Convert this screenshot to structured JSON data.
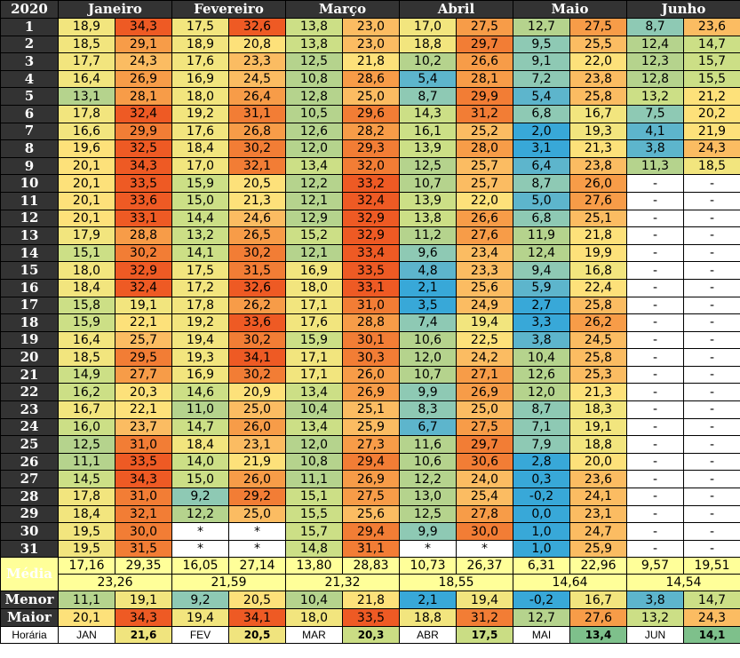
{
  "year": "2020",
  "months": [
    "Janeiro",
    "Fevereiro",
    "Março",
    "Abril",
    "Maio",
    "Junho"
  ],
  "days": [
    "1",
    "2",
    "3",
    "4",
    "5",
    "6",
    "7",
    "8",
    "9",
    "10",
    "11",
    "12",
    "13",
    "14",
    "15",
    "16",
    "17",
    "18",
    "19",
    "20",
    "21",
    "22",
    "23",
    "24",
    "25",
    "26",
    "27",
    "28",
    "29",
    "30",
    "31"
  ],
  "min_values": [
    [
      "18,9",
      "17,5",
      "13,8",
      "17,0",
      "12,7",
      "8,7"
    ],
    [
      "18,5",
      "18,9",
      "13,8",
      "18,8",
      "9,5",
      "12,4"
    ],
    [
      "17,7",
      "17,6",
      "12,5",
      "10,2",
      "9,1",
      "12,3"
    ],
    [
      "16,4",
      "16,9",
      "10,8",
      "5,4",
      "7,2",
      "12,8"
    ],
    [
      "13,1",
      "18,0",
      "12,8",
      "8,7",
      "5,4",
      "13,2"
    ],
    [
      "17,8",
      "19,2",
      "10,5",
      "14,3",
      "6,8",
      "7,5"
    ],
    [
      "16,6",
      "17,6",
      "12,6",
      "16,1",
      "2,0",
      "4,1"
    ],
    [
      "19,6",
      "18,4",
      "12,0",
      "13,9",
      "3,1",
      "3,8"
    ],
    [
      "20,1",
      "17,0",
      "13,4",
      "12,5",
      "6,4",
      "11,3"
    ],
    [
      "20,1",
      "15,9",
      "12,2",
      "10,7",
      "8,7",
      "-"
    ],
    [
      "20,1",
      "15,0",
      "12,1",
      "13,9",
      "5,0",
      "-"
    ],
    [
      "20,1",
      "14,4",
      "12,9",
      "13,8",
      "6,8",
      "-"
    ],
    [
      "17,9",
      "13,2",
      "15,2",
      "11,2",
      "11,9",
      "-"
    ],
    [
      "15,1",
      "14,1",
      "12,1",
      "9,6",
      "12,4",
      "-"
    ],
    [
      "18,0",
      "17,5",
      "16,9",
      "4,8",
      "9,4",
      "-"
    ],
    [
      "18,4",
      "17,2",
      "18,0",
      "2,1",
      "5,9",
      "-"
    ],
    [
      "15,8",
      "17,8",
      "17,1",
      "3,5",
      "2,7",
      "-"
    ],
    [
      "15,9",
      "19,2",
      "17,6",
      "7,4",
      "3,3",
      "-"
    ],
    [
      "16,4",
      "19,4",
      "15,9",
      "10,6",
      "3,8",
      "-"
    ],
    [
      "18,5",
      "19,3",
      "17,1",
      "12,0",
      "10,4",
      "-"
    ],
    [
      "14,9",
      "16,9",
      "17,1",
      "10,7",
      "12,6",
      "-"
    ],
    [
      "16,2",
      "14,6",
      "13,4",
      "9,9",
      "12,0",
      "-"
    ],
    [
      "16,7",
      "11,0",
      "10,4",
      "8,3",
      "8,7",
      "-"
    ],
    [
      "16,0",
      "14,7",
      "13,4",
      "6,7",
      "7,1",
      "-"
    ],
    [
      "12,5",
      "18,4",
      "12,0",
      "11,6",
      "7,9",
      "-"
    ],
    [
      "11,1",
      "14,0",
      "10,8",
      "10,6",
      "2,8",
      "-"
    ],
    [
      "14,5",
      "15,0",
      "11,1",
      "12,2",
      "0,3",
      "-"
    ],
    [
      "17,8",
      "9,2",
      "15,1",
      "13,0",
      "-0,2",
      "-"
    ],
    [
      "18,4",
      "12,2",
      "15,5",
      "12,5",
      "0,0",
      "-"
    ],
    [
      "19,5",
      "*",
      "15,7",
      "9,9",
      "1,0",
      "-"
    ],
    [
      "19,5",
      "*",
      "14,8",
      "*",
      "1,0",
      "-"
    ]
  ],
  "max_values": [
    [
      "34,3",
      "32,6",
      "23,0",
      "27,5",
      "27,5",
      "23,6"
    ],
    [
      "29,1",
      "20,8",
      "23,0",
      "29,7",
      "25,5",
      "14,7"
    ],
    [
      "24,3",
      "23,3",
      "21,8",
      "26,6",
      "22,0",
      "15,7"
    ],
    [
      "26,9",
      "24,5",
      "28,6",
      "28,1",
      "23,8",
      "15,5"
    ],
    [
      "28,1",
      "26,4",
      "25,0",
      "29,9",
      "25,8",
      "21,2"
    ],
    [
      "32,4",
      "31,1",
      "29,6",
      "31,2",
      "16,7",
      "20,2"
    ],
    [
      "29,9",
      "26,8",
      "28,2",
      "25,2",
      "19,3",
      "21,9"
    ],
    [
      "32,5",
      "30,2",
      "29,3",
      "28,0",
      "21,3",
      "24,3"
    ],
    [
      "34,3",
      "32,1",
      "32,0",
      "25,7",
      "23,8",
      "18,5"
    ],
    [
      "33,5",
      "20,5",
      "33,2",
      "25,7",
      "26,0",
      "-"
    ],
    [
      "33,6",
      "21,3",
      "32,4",
      "22,0",
      "27,6",
      "-"
    ],
    [
      "33,1",
      "24,6",
      "32,9",
      "26,6",
      "25,1",
      "-"
    ],
    [
      "28,8",
      "26,5",
      "32,9",
      "27,6",
      "21,8",
      "-"
    ],
    [
      "30,2",
      "30,2",
      "33,4",
      "23,4",
      "19,9",
      "-"
    ],
    [
      "32,9",
      "31,5",
      "33,5",
      "23,3",
      "16,8",
      "-"
    ],
    [
      "32,4",
      "32,6",
      "33,1",
      "25,6",
      "22,4",
      "-"
    ],
    [
      "19,1",
      "26,2",
      "31,0",
      "24,9",
      "25,8",
      "-"
    ],
    [
      "22,1",
      "33,6",
      "28,8",
      "19,4",
      "26,2",
      "-"
    ],
    [
      "25,7",
      "30,2",
      "30,1",
      "22,5",
      "24,5",
      "-"
    ],
    [
      "29,5",
      "34,1",
      "30,3",
      "24,2",
      "25,8",
      "-"
    ],
    [
      "27,7",
      "30,2",
      "26,0",
      "27,1",
      "25,3",
      "-"
    ],
    [
      "20,3",
      "20,9",
      "26,9",
      "26,9",
      "21,3",
      "-"
    ],
    [
      "22,1",
      "25,0",
      "25,1",
      "25,0",
      "18,3",
      "-"
    ],
    [
      "23,7",
      "26,0",
      "25,9",
      "27,5",
      "19,1",
      "-"
    ],
    [
      "31,0",
      "23,1",
      "27,3",
      "29,7",
      "18,8",
      "-"
    ],
    [
      "33,5",
      "21,9",
      "29,4",
      "30,6",
      "20,0",
      "-"
    ],
    [
      "34,3",
      "26,0",
      "26,9",
      "24,0",
      "23,6",
      "-"
    ],
    [
      "31,0",
      "29,2",
      "27,5",
      "25,4",
      "24,1",
      "-"
    ],
    [
      "32,1",
      "25,0",
      "25,6",
      "27,8",
      "23,1",
      "-"
    ],
    [
      "30,0",
      "*",
      "29,4",
      "30,0",
      "24,7",
      "-"
    ],
    [
      "31,5",
      "*",
      "31,1",
      "*",
      "25,9",
      "-"
    ]
  ],
  "summary": {
    "media_label": "Média",
    "media_min": [
      "17,16",
      "16,05",
      "13,80",
      "10,73",
      "6,31",
      "9,57"
    ],
    "media_max": [
      "29,35",
      "27,14",
      "28,83",
      "26,37",
      "22,96",
      "19,51"
    ],
    "media_avg": [
      "23,26",
      "21,59",
      "21,32",
      "18,55",
      "14,64",
      "14,54"
    ],
    "menor_label": "Menor",
    "menor_min": [
      "11,1",
      "9,2",
      "10,4",
      "2,1",
      "-0,2",
      "3,8"
    ],
    "menor_max": [
      "19,1",
      "20,5",
      "21,8",
      "19,4",
      "16,7",
      "14,7"
    ],
    "maior_label": "Maior",
    "maior_min": [
      "20,1",
      "19,4",
      "18,0",
      "18,8",
      "12,7",
      "13,2"
    ],
    "maior_max": [
      "34,3",
      "34,1",
      "33,5",
      "31,2",
      "27,6",
      "24,3"
    ],
    "horaria_label": "Horária",
    "horaria_abbr": [
      "JAN",
      "FEV",
      "MAR",
      "ABR",
      "MAI",
      "JUN"
    ],
    "horaria_val": [
      "21,6",
      "20,5",
      "20,3",
      "17,5",
      "13,4",
      "14,1"
    ]
  },
  "colors": {
    "header_bg": "#333333",
    "header_text": "#ffffff",
    "empty_bg": "#ffffff",
    "media_bg": "#ffff99",
    "scale": [
      "#38a8d8",
      "#5db5cc",
      "#8ec9b4",
      "#b5d38d",
      "#ccdf86",
      "#f2e57e",
      "#fde17a",
      "#fbbc62",
      "#f79c48",
      "#f27d35",
      "#ee5a24"
    ],
    "horaria_scale": [
      "#7ec08b",
      "#a4d08a",
      "#cadd84",
      "#f0e47e"
    ]
  }
}
